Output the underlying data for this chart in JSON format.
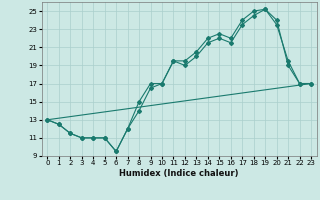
{
  "xlabel": "Humidex (Indice chaleur)",
  "background_color": "#cce8e4",
  "grid_color": "#aacfcc",
  "line_color": "#1a7a6e",
  "xlim": [
    -0.5,
    23.5
  ],
  "ylim": [
    9,
    26
  ],
  "xticks": [
    0,
    1,
    2,
    3,
    4,
    5,
    6,
    7,
    8,
    9,
    10,
    11,
    12,
    13,
    14,
    15,
    16,
    17,
    18,
    19,
    20,
    21,
    22,
    23
  ],
  "yticks": [
    9,
    11,
    13,
    15,
    17,
    19,
    21,
    23,
    25
  ],
  "line1_x": [
    0,
    1,
    2,
    3,
    4,
    5,
    6,
    7,
    8,
    9,
    10,
    11,
    12,
    13,
    14,
    15,
    16,
    17,
    18,
    19,
    20,
    21,
    22,
    23
  ],
  "line1_y": [
    13.0,
    12.5,
    11.5,
    11.0,
    11.0,
    11.0,
    9.5,
    12.0,
    15.0,
    17.0,
    17.0,
    19.5,
    19.5,
    20.5,
    22.0,
    22.5,
    22.0,
    24.0,
    25.0,
    25.2,
    24.0,
    19.0,
    17.0,
    17.0
  ],
  "line2_x": [
    0,
    1,
    2,
    3,
    4,
    5,
    6,
    7,
    8,
    9,
    10,
    11,
    12,
    13,
    14,
    15,
    16,
    17,
    18,
    19,
    20,
    21,
    22,
    23
  ],
  "line2_y": [
    13.0,
    12.5,
    11.5,
    11.0,
    11.0,
    11.0,
    9.5,
    12.0,
    14.0,
    16.5,
    17.0,
    19.5,
    19.0,
    20.0,
    21.5,
    22.0,
    21.5,
    23.5,
    24.5,
    25.2,
    23.5,
    19.5,
    17.0,
    17.0
  ],
  "line3_x": [
    0,
    23
  ],
  "line3_y": [
    13.0,
    17.0
  ]
}
